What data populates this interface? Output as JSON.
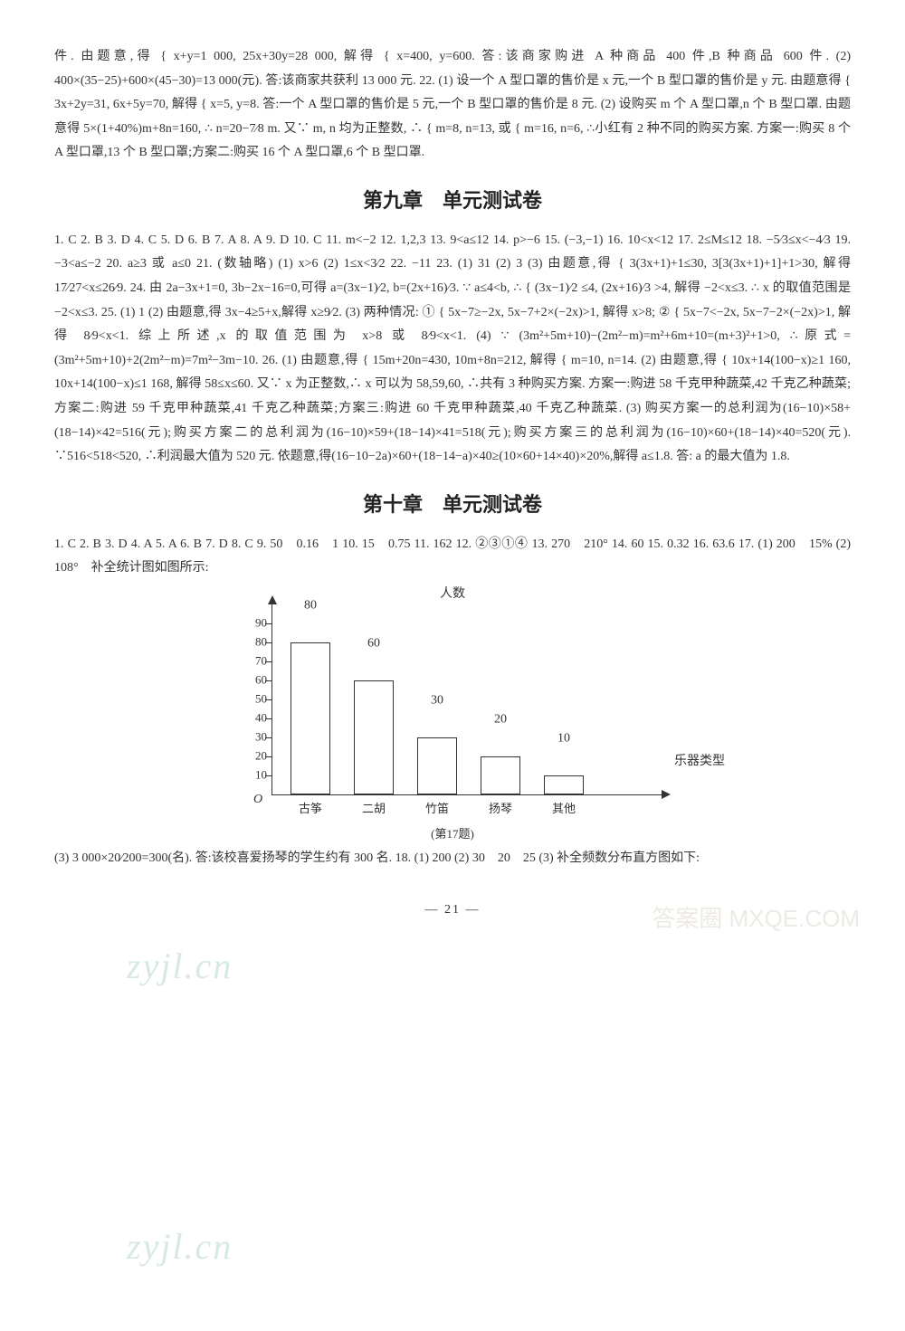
{
  "intro_para": "件. 由题意,得 { x+y=1 000, 25x+30y=28 000, 解得 { x=400, y=600. 答:该商家购进 A 种商品 400 件,B 种商品 600 件.  (2) 400×(35−25)+600×(45−30)=13 000(元). 答:该商家共获利 13 000 元.  22. (1) 设一个 A 型口罩的售价是 x 元,一个 B 型口罩的售价是 y 元. 由题意得 { 3x+2y=31, 6x+5y=70, 解得 { x=5, y=8. 答:一个 A 型口罩的售价是 5 元,一个 B 型口罩的售价是 8 元.  (2) 设购买 m 个 A 型口罩,n 个 B 型口罩. 由题意得 5×(1+40%)m+8n=160, ∴ n=20−7⁄8 m. 又∵ m, n 均为正整数, ∴ { m=8, n=13, 或 { m=16, n=6, ∴小红有 2 种不同的购买方案. 方案一:购买 8 个 A 型口罩,13 个 B 型口罩;方案二:购买 16 个 A 型口罩,6 个 B 型口罩.",
  "chapter9_title": "第九章　单元测试卷",
  "chapter9_para": "1. C  2. B  3. D  4. C  5. D  6. B  7. A  8. A  9. D  10. C  11. m<−2  12. 1,2,3  13. 9<a≤12  14. p>−6  15. (−3,−1)  16. 10<x<12  17. 2≤M≤12  18. −5⁄3≤x<−4⁄3  19. −3<a≤−2  20. a≥3 或 a≤0  21. (数轴略) (1) x>6  (2) 1≤x<3⁄2  22. −11  23. (1) 31  (2) 3  (3) 由题意,得 { 3(3x+1)+1≤30, 3[3(3x+1)+1]+1>30, 解得 17⁄27<x≤26⁄9.  24. 由 2a−3x+1=0, 3b−2x−16=0,可得 a=(3x−1)⁄2, b=(2x+16)⁄3. ∵ a≤4<b, ∴ { (3x−1)⁄2 ≤4, (2x+16)⁄3 >4, 解得 −2<x≤3. ∴ x 的取值范围是 −2<x≤3.  25. (1) 1  (2) 由题意,得 3x−4≥5+x,解得 x≥9⁄2.  (3) 两种情况: ① { 5x−7≥−2x, 5x−7+2×(−2x)>1, 解得 x>8; ② { 5x−7<−2x, 5x−7−2×(−2x)>1, 解得 8⁄9<x<1. 综上所述,x 的取值范围为 x>8 或 8⁄9<x<1.  (4) ∵ (3m²+5m+10)−(2m²−m)=m²+6m+10=(m+3)²+1>0, ∴原式=(3m²+5m+10)+2(2m²−m)=7m²−3m−10.  26. (1) 由题意,得 { 15m+20n=430, 10m+8n=212, 解得 { m=10, n=14.  (2) 由题意,得 { 10x+14(100−x)≥1 160, 10x+14(100−x)≤1 168, 解得 58≤x≤60. 又∵ x 为正整数,∴ x 可以为 58,59,60, ∴共有 3 种购买方案. 方案一:购进 58 千克甲种蔬菜,42 千克乙种蔬菜;方案二:购进 59 千克甲种蔬菜,41 千克乙种蔬菜;方案三:购进 60 千克甲种蔬菜,40 千克乙种蔬菜.  (3) 购买方案一的总利润为(16−10)×58+(18−14)×42=516(元);购买方案二的总利润为(16−10)×59+(18−14)×41=518(元);购买方案三的总利润为(16−10)×60+(18−14)×40=520(元). ∵516<518<520, ∴利润最大值为 520 元. 依题意,得(16−10−2a)×60+(18−14−a)×40≥(10×60+14×40)×20%,解得 a≤1.8. 答: a 的最大值为 1.8.",
  "chapter10_title": "第十章　单元测试卷",
  "chapter10_para1": "1. C  2. B  3. D  4. A  5. A  6. B  7. D  8. C  9. 50　0.16　1  10. 15　0.75  11. 162  12. ②③①④  13. 270　210°  14. 60  15. 0.32  16. 63.6  17. (1) 200　15%  (2) 108°　补全统计图如图所示:",
  "chapter10_para2": "(3) 3 000×20⁄200=300(名). 答:该校喜爱扬琴的学生约有 300 名.  18. (1) 200  (2) 30　20　25  (3) 补全频数分布直方图如下:",
  "chart": {
    "y_label": "人数",
    "x_label": "乐器类型",
    "origin": "O",
    "y_max": 100,
    "y_ticks": [
      10,
      20,
      30,
      40,
      50,
      60,
      70,
      80,
      90
    ],
    "categories": [
      "古筝",
      "二胡",
      "竹笛",
      "扬琴",
      "其他"
    ],
    "values": [
      80,
      60,
      30,
      20,
      10
    ],
    "bar_border": "#333333",
    "bar_fill": "#ffffff",
    "axis_color": "#333333",
    "caption": "(第17题)"
  },
  "page_number": "— 21 —",
  "watermark1": "zyjl.cn",
  "watermark2": "zyjl.cn",
  "watermark_right": "答案圈\nMXQE.COM"
}
